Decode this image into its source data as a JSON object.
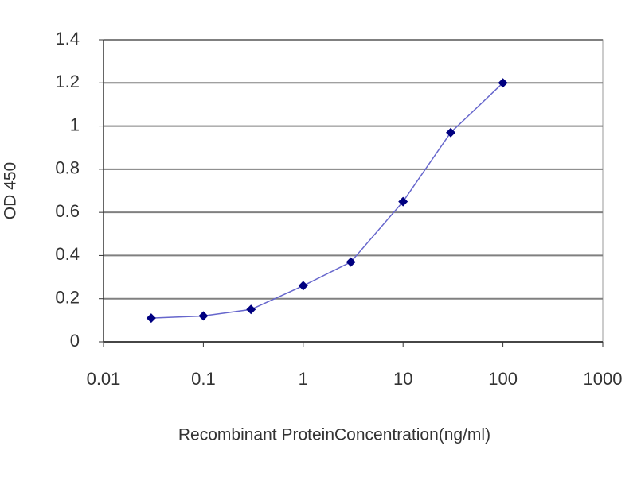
{
  "chart_data": {
    "type": "line",
    "x_label": "Recombinant ProteinConcentration(ng/ml)",
    "y_label": "OD 450",
    "x": [
      0.03,
      0.1,
      0.3,
      1,
      3,
      10,
      30,
      100
    ],
    "series": [
      {
        "color": "#6666cc",
        "marker_color": "#000080",
        "values": [
          0.11,
          0.12,
          0.15,
          0.26,
          0.37,
          0.65,
          0.97,
          1.2
        ]
      }
    ],
    "xscale": "log",
    "xlim": [
      0.01,
      1000
    ],
    "xticks": [
      0.01,
      0.1,
      1,
      10,
      100,
      1000
    ],
    "ylim": [
      0,
      1.4
    ],
    "yticks": [
      0,
      0.2,
      0.4,
      0.6,
      0.8,
      1,
      1.2,
      1.4
    ],
    "grid": true,
    "grid_color": "#808080"
  }
}
